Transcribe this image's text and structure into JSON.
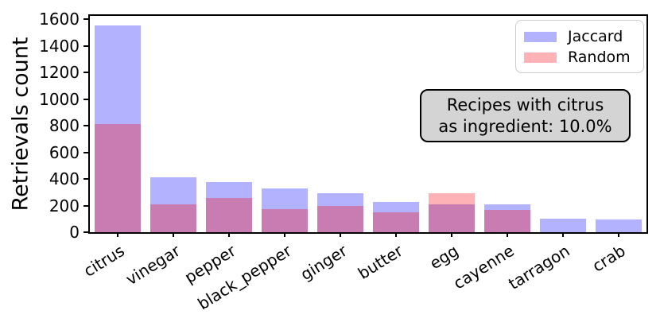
{
  "figure": {
    "ylabel": "Retrievals count",
    "annotation_line1": "Recipes with citrus",
    "annotation_line2": "as ingredient: 10.0%"
  },
  "chart_data": {
    "type": "bar",
    "title": "",
    "xlabel": "",
    "ylabel": "Retrievals count",
    "categories": [
      "citrus",
      "vinegar",
      "pepper",
      "black_pepper",
      "ginger",
      "butter",
      "egg",
      "cayenne",
      "tarragon",
      "crab"
    ],
    "series": [
      {
        "name": "Jaccard",
        "color": "#b2b2ff",
        "values": [
          1555,
          410,
          375,
          330,
          295,
          225,
          210,
          210,
          100,
          95
        ]
      },
      {
        "name": "Random",
        "color": "#ffb2b6",
        "values": [
          815,
          210,
          255,
          175,
          195,
          150,
          290,
          165,
          0,
          0
        ]
      }
    ],
    "overlap_color": "#c87cb2",
    "bar_mode": "overlay",
    "ylim": [
      0,
      1625
    ],
    "yticks": [
      0,
      200,
      400,
      600,
      800,
      1000,
      1200,
      1400,
      1600
    ],
    "grid": false,
    "legend_position": "upper right",
    "annotation": "Recipes with citrus\nas ingredient: 10.0%"
  }
}
